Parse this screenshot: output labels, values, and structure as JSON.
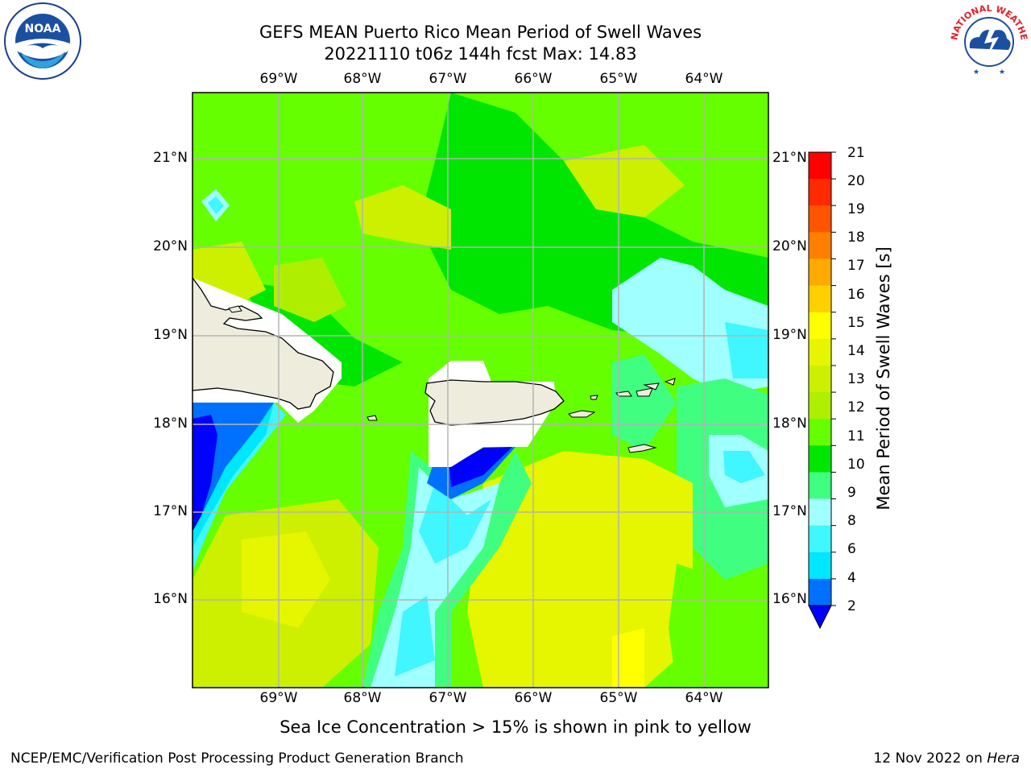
{
  "title": {
    "line1": "GEFS MEAN Puerto Rico Mean Period of Swell Waves",
    "line2": "20221110 t06z 144h fcst   Max: 14.83"
  },
  "map": {
    "lon_labels": [
      "69°W",
      "68°W",
      "67°W",
      "66°W",
      "65°W",
      "64°W"
    ],
    "lat_labels": [
      "21°N",
      "20°N",
      "19°N",
      "18°N",
      "17°N",
      "16°N"
    ]
  },
  "colorbar": {
    "label": "Mean Period of Swell Waves [s]",
    "ticks": [
      "21",
      "20",
      "19",
      "18",
      "17",
      "16",
      "15",
      "14",
      "13",
      "12",
      "11",
      "10",
      "9",
      "8",
      "6",
      "4",
      "2"
    ],
    "colors": [
      "#ff0000",
      "#ff2a00",
      "#ff5500",
      "#ff8000",
      "#ffaa00",
      "#ffd000",
      "#ffff00",
      "#e6f500",
      "#ccf000",
      "#b0ee00",
      "#66ff00",
      "#00e600",
      "#40ff80",
      "#a0ffff",
      "#40f6ff",
      "#00e6ff",
      "#0070ff"
    ],
    "under_color": "#0000ff"
  },
  "note": "Sea Ice Concentration > 15% is shown in pink to yellow",
  "footer": {
    "left": "NCEP/EMC/Verification Post Processing Product Generation Branch",
    "right_date": "12 Nov 2022 on ",
    "right_machine": "Hera"
  },
  "logos": {
    "noaa_text": "NOAA",
    "noaa_ring": "NATIONAL OCEANIC AND ATMOSPHERIC ADMINISTRATION",
    "noaa_ring_bottom": "U.S. DEPARTMENT OF COMMERCE",
    "nws_ring": "NATIONAL WEATHER SERVICE"
  },
  "colors": {
    "land": "#eeecdc",
    "grid": "#b4b4b4"
  }
}
